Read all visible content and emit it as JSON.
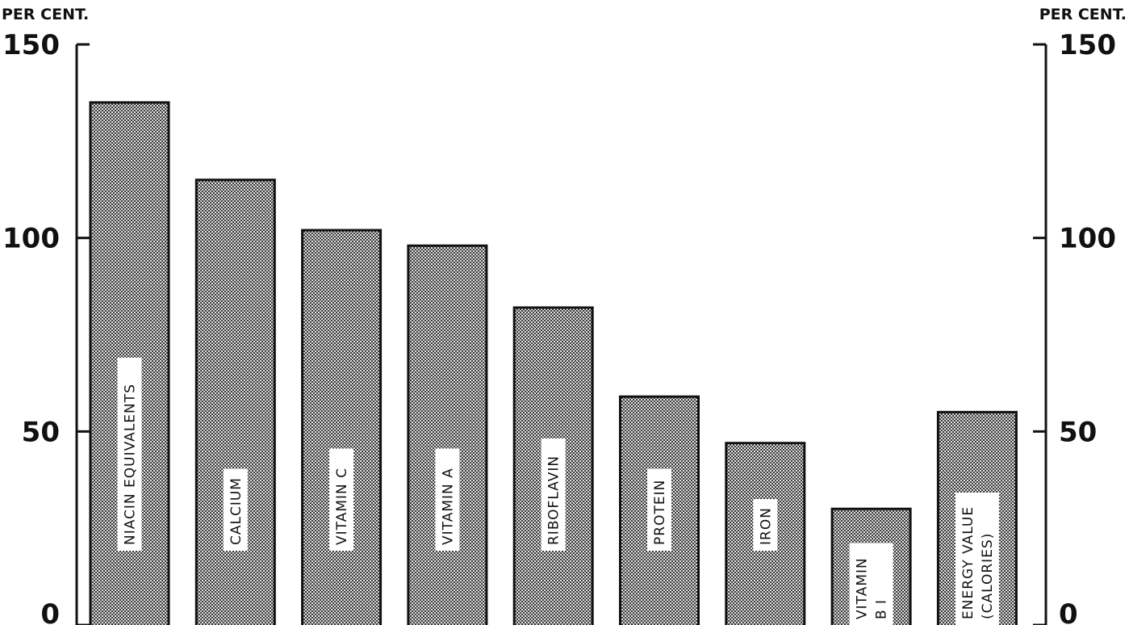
{
  "chart_data": {
    "type": "bar",
    "title": "",
    "xlabel": "",
    "ylabel_left": "PER CENT.",
    "ylabel_right": "PER CENT.",
    "ylim": [
      0,
      150
    ],
    "yticks": [
      0,
      50,
      100,
      150
    ],
    "ytick_labels": [
      "0",
      "50",
      "100",
      "150"
    ],
    "grid": false,
    "legend": "none",
    "bar_fill": "crosshatch-stipple",
    "categories": [
      [
        "NIACIN EQUIVALENTS"
      ],
      [
        "CALCIUM"
      ],
      [
        "VITAMIN C"
      ],
      [
        "VITAMIN A"
      ],
      [
        "RIBOFLAVIN"
      ],
      [
        "PROTEIN"
      ],
      [
        "IRON"
      ],
      [
        "VITAMIN",
        "B I"
      ],
      [
        "ENERGY VALUE",
        "(CALORIES)"
      ]
    ],
    "values": [
      135,
      115,
      102,
      98,
      82,
      59,
      47,
      30,
      55
    ]
  }
}
